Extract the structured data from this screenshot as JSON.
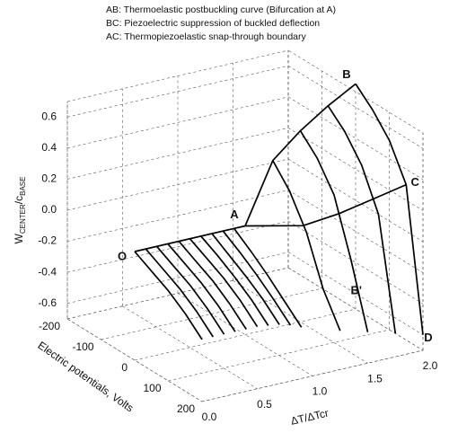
{
  "chart_data": {
    "type": "line3d",
    "annotations": [
      "AB: Thermoelastic postbuckling curve (Bifurcation at A)",
      "BC: Piezoelectric suppression of buckled deflection",
      "AC: Thermopiezoelastic snap-through boundary"
    ],
    "zlabel": [
      "W",
      "CENTER",
      "/c",
      "BASE"
    ],
    "xlabel": "ΔT/ΔTcr",
    "ylabel": "Electric potentials, Volts",
    "xlim": [
      0,
      2
    ],
    "xticks": [
      {
        "value": 0,
        "label": "0.0"
      },
      0.5,
      {
        "value": 1,
        "label": "1.0"
      },
      1.5,
      {
        "value": 2,
        "label": "2.0"
      }
    ],
    "ylim": [
      -200,
      200
    ],
    "yticks": [
      -200,
      -100,
      0,
      100,
      200
    ],
    "zlim": [
      -0.7,
      0.7
    ],
    "zticks": [
      -0.6,
      -0.4,
      -0.2,
      {
        "value": 0,
        "label": "0.0"
      },
      0.2,
      0.4,
      0.6
    ],
    "grid": true,
    "color": "#000000",
    "v": [
      0,
      50,
      100,
      150,
      200
    ],
    "curves": [
      {
        "t": 0,
        "w": [
          0,
          -0.06,
          -0.12,
          -0.2,
          -0.3
        ]
      },
      {
        "t": 0.1,
        "w": [
          0,
          -0.06,
          -0.12,
          -0.2,
          -0.3
        ]
      },
      {
        "t": 0.2,
        "w": [
          0,
          -0.06,
          -0.12,
          -0.2,
          -0.3
        ]
      },
      {
        "t": 0.3,
        "w": [
          0,
          -0.06,
          -0.12,
          -0.2,
          -0.3
        ]
      },
      {
        "t": 0.4,
        "w": [
          0,
          -0.06,
          -0.12,
          -0.2,
          -0.3
        ]
      },
      {
        "t": 0.5,
        "w": [
          0,
          -0.06,
          -0.12,
          -0.2,
          -0.3
        ]
      },
      {
        "t": 0.6,
        "w": [
          0,
          -0.06,
          -0.13,
          -0.21,
          -0.31
        ]
      },
      {
        "t": 0.7,
        "w": [
          0,
          -0.07,
          -0.14,
          -0.22,
          -0.32
        ]
      },
      {
        "t": 0.8,
        "w": [
          0,
          -0.07,
          -0.15,
          -0.24,
          -0.34
        ]
      },
      {
        "t": 0.9,
        "w": [
          0,
          -0.08,
          -0.17,
          -0.27,
          -0.37
        ]
      },
      {
        "t": 1.25,
        "w": [
          0.38,
          0.25,
          0.05,
          -0.25,
          -0.45
        ]
      },
      {
        "t": 1.5,
        "w": [
          0.53,
          0.42,
          0.25,
          -0.1,
          -0.5
        ]
      },
      {
        "t": 1.75,
        "w": [
          0.65,
          0.55,
          0.4,
          0.15,
          -0.55
        ]
      },
      {
        "t": 2,
        "w": [
          0.75,
          0.65,
          0.52,
          0.3,
          -0.6
        ]
      }
    ],
    "ab": {
      "t": [
        1,
        1.25,
        1.5,
        1.75,
        2
      ],
      "w": [
        0,
        0.38,
        0.53,
        0.65,
        0.75
      ]
    },
    "ac": {
      "t": [
        1,
        1.25,
        1.5,
        1.75,
        2
      ],
      "v": [
        0,
        90,
        115,
        135,
        150
      ],
      "w": [
        0,
        0.08,
        0.15,
        0.23,
        0.3
      ]
    },
    "points": [
      {
        "label": "O",
        "t": 0,
        "v": 0,
        "w": 0
      },
      {
        "label": "A",
        "t": 1,
        "v": 0,
        "w": 0
      },
      {
        "label": "B",
        "t": 2,
        "v": 0,
        "w": 0.75
      },
      {
        "label": "C",
        "t": 2,
        "v": 150,
        "w": 0.3
      },
      {
        "label": "B'",
        "t": 1.5,
        "v": 150,
        "w": -0.28
      },
      {
        "label": "D",
        "t": 2,
        "v": 200,
        "w": -0.6
      }
    ]
  }
}
